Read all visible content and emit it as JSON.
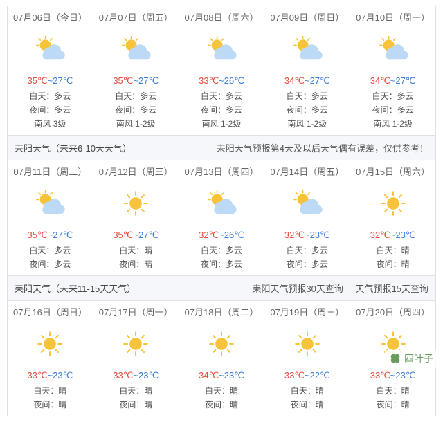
{
  "icons": {
    "partly_cloudy": {
      "sun_fill": "#f7c33b",
      "cloud_fill": "#bcd9f5",
      "ray": "#f7c33b"
    },
    "sunny": {
      "sun_fill": "#f7c33b",
      "ray": "#f7c33b"
    }
  },
  "colors": {
    "hi": "#e84c3d",
    "lo": "#3b7dd8",
    "border": "#e0e0e0",
    "section_bg": "#f5f7fa"
  },
  "row1": [
    {
      "date": "07月06日（今日）",
      "icon": "partly_cloudy",
      "hi": "35℃",
      "lo": "~27℃",
      "day": "白天：多云",
      "night": "夜间：多云",
      "wind": "南风 3级"
    },
    {
      "date": "07月07日（周五）",
      "icon": "partly_cloudy",
      "hi": "35℃",
      "lo": "~27℃",
      "day": "白天：多云",
      "night": "夜间：多云",
      "wind": "南风 1-2级"
    },
    {
      "date": "07月08日（周六）",
      "icon": "partly_cloudy",
      "hi": "33℃",
      "lo": "~26℃",
      "day": "白天：多云",
      "night": "夜间：多云",
      "wind": "南风 1-2级"
    },
    {
      "date": "07月09日（周日）",
      "icon": "partly_cloudy",
      "hi": "34℃",
      "lo": "~27℃",
      "day": "白天：多云",
      "night": "夜间：多云",
      "wind": "南风 1-2级"
    },
    {
      "date": "07月10日（周一）",
      "icon": "partly_cloudy",
      "hi": "34℃",
      "lo": "~27℃",
      "day": "白天：多云",
      "night": "夜间：多云",
      "wind": "南风 1-2级"
    }
  ],
  "section2": {
    "title": "耒阳天气（未来6-10天天气）",
    "note": "耒阳天气预报第4天及以后天气偶有误差，仅供参考！"
  },
  "row2": [
    {
      "date": "07月11日（周二）",
      "icon": "partly_cloudy",
      "hi": "35℃",
      "lo": "~27℃",
      "day": "白天：多云",
      "night": "夜间：多云"
    },
    {
      "date": "07月12日（周三）",
      "icon": "sunny",
      "hi": "35℃",
      "lo": "~27℃",
      "day": "白天：晴",
      "night": "夜间：晴"
    },
    {
      "date": "07月13日（周四）",
      "icon": "partly_cloudy",
      "hi": "32℃",
      "lo": "~26℃",
      "day": "白天：多云",
      "night": "夜间：多云"
    },
    {
      "date": "07月14日（周五）",
      "icon": "partly_cloudy",
      "hi": "32℃",
      "lo": "~23℃",
      "day": "白天：多云",
      "night": "夜间：多云"
    },
    {
      "date": "07月15日（周六）",
      "icon": "sunny",
      "hi": "32℃",
      "lo": "~23℃",
      "day": "白天：晴",
      "night": "夜间：晴"
    }
  ],
  "section3": {
    "title": "耒阳天气（未来11-15天天气）",
    "link1": "耒阳天气预报30天查询",
    "link2": "天气预报15天查询"
  },
  "row3": [
    {
      "date": "07月16日（周日）",
      "icon": "sunny",
      "hi": "33℃",
      "lo": "~23℃",
      "day": "白天：晴",
      "night": "夜间：晴"
    },
    {
      "date": "07月17日（周一）",
      "icon": "sunny",
      "hi": "33℃",
      "lo": "~23℃",
      "day": "白天：晴",
      "night": "夜间：晴"
    },
    {
      "date": "07月18日（周二）",
      "icon": "sunny",
      "hi": "34℃",
      "lo": "~23℃",
      "day": "白天：晴",
      "night": "夜间：晴"
    },
    {
      "date": "07月19日（周三）",
      "icon": "sunny",
      "hi": "33℃",
      "lo": "~22℃",
      "day": "白天：晴",
      "night": "夜间：晴"
    },
    {
      "date": "07月20日（周四）",
      "icon": "sunny",
      "hi": "33℃",
      "lo": "~23℃",
      "day": "白天：晴",
      "night": "夜间：晴"
    }
  ],
  "watermark": {
    "text": "四叶子"
  }
}
